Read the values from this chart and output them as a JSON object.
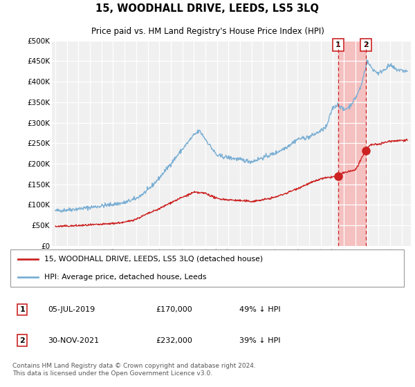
{
  "title": "15, WOODHALL DRIVE, LEEDS, LS5 3LQ",
  "subtitle": "Price paid vs. HM Land Registry's House Price Index (HPI)",
  "ylim": [
    0,
    500000
  ],
  "yticks": [
    0,
    50000,
    100000,
    150000,
    200000,
    250000,
    300000,
    350000,
    400000,
    450000,
    500000
  ],
  "ytick_labels": [
    "£0",
    "£50K",
    "£100K",
    "£150K",
    "£200K",
    "£250K",
    "£300K",
    "£350K",
    "£400K",
    "£450K",
    "£500K"
  ],
  "hpi_color": "#7bafd4",
  "price_color": "#cc2222",
  "shade_color": "#f5c0c0",
  "transaction1": {
    "date_num": 2019.5,
    "price": 170000,
    "label": "1",
    "date_str": "05-JUL-2019",
    "price_str": "£170,000",
    "info": "49% ↓ HPI"
  },
  "transaction2": {
    "date_num": 2021.92,
    "price": 232000,
    "label": "2",
    "date_str": "30-NOV-2021",
    "price_str": "£232,000",
    "info": "39% ↓ HPI"
  },
  "legend_label1": "15, WOODHALL DRIVE, LEEDS, LS5 3LQ (detached house)",
  "legend_label2": "HPI: Average price, detached house, Leeds",
  "footer": "Contains HM Land Registry data © Crown copyright and database right 2024.\nThis data is licensed under the Open Government Licence v3.0.",
  "background_color": "#ffffff",
  "plot_bg_color": "#f0f0f0",
  "hpi_anchors_t": [
    1995,
    1997,
    1999,
    2001,
    2002,
    2003,
    2004,
    2005,
    2006,
    2007,
    2007.5,
    2008,
    2008.5,
    2009,
    2010,
    2011,
    2012,
    2013,
    2014,
    2015,
    2016,
    2017,
    2018,
    2018.5,
    2019,
    2019.5,
    2020,
    2020.5,
    2021,
    2021.5,
    2022,
    2022.5,
    2023,
    2023.5,
    2024,
    2024.5,
    2025.5
  ],
  "hpi_anchors_v": [
    85000,
    90000,
    97000,
    105000,
    115000,
    135000,
    165000,
    200000,
    235000,
    270000,
    280000,
    260000,
    240000,
    220000,
    215000,
    210000,
    205000,
    215000,
    225000,
    240000,
    260000,
    265000,
    280000,
    290000,
    335000,
    345000,
    330000,
    340000,
    360000,
    390000,
    450000,
    430000,
    420000,
    430000,
    440000,
    430000,
    425000
  ],
  "price_anchors_t": [
    1995,
    1997,
    1999,
    2001,
    2002,
    2003,
    2004,
    2005,
    2006,
    2007,
    2008,
    2009,
    2010,
    2011,
    2012,
    2013,
    2014,
    2015,
    2016,
    2017,
    2018,
    2019.5,
    2020,
    2021.0,
    2021.92,
    2022.2,
    2023,
    2024,
    2025.5
  ],
  "price_anchors_v": [
    47000,
    49000,
    52000,
    57000,
    65000,
    78000,
    90000,
    105000,
    118000,
    130000,
    128000,
    115000,
    112000,
    110000,
    108000,
    112000,
    118000,
    128000,
    140000,
    152000,
    163000,
    170000,
    178000,
    185000,
    232000,
    245000,
    248000,
    255000,
    258000
  ]
}
